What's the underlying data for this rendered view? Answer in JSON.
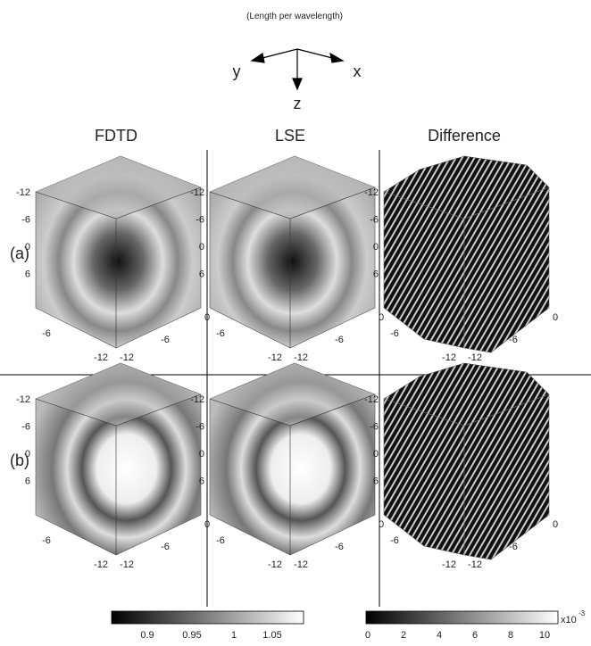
{
  "axes_diagram": {
    "caption": "(Length per wavelength)",
    "y": "y",
    "x": "x",
    "z": "z"
  },
  "columns": [
    "FDTD",
    "LSE",
    "Difference"
  ],
  "rows": [
    "(a)",
    "(b)"
  ],
  "panel_ticks": {
    "left": [
      "-12",
      "-6",
      "0",
      "6"
    ],
    "bottom_left": [
      "-6",
      "-12"
    ],
    "bottom_right": [
      "-12",
      "-6",
      "0"
    ]
  },
  "colorbars": [
    {
      "ticks": [
        "0.9",
        "0.95",
        "1",
        "1.05"
      ]
    },
    {
      "ticks": [
        "0",
        "2",
        "4",
        "6",
        "8",
        "10"
      ],
      "multiplier": "x10",
      "exponent": "-3"
    }
  ]
}
